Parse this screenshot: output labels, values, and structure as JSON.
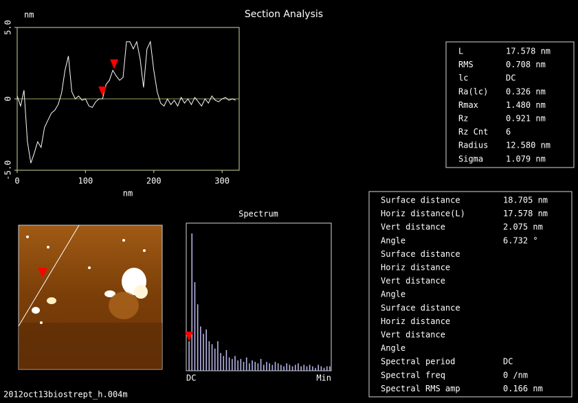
{
  "title": "Section Analysis",
  "filename": "2012oct13biostrept_h.004m",
  "chart_data": [
    {
      "type": "line",
      "ylabel": "nm",
      "xlabel": "nm",
      "x": [
        0,
        5,
        10,
        15,
        20,
        25,
        30,
        35,
        40,
        45,
        50,
        55,
        60,
        65,
        70,
        75,
        80,
        85,
        90,
        95,
        100,
        105,
        110,
        115,
        120,
        125,
        130,
        135,
        140,
        145,
        150,
        155,
        160,
        165,
        170,
        175,
        180,
        185,
        190,
        195,
        200,
        205,
        210,
        215,
        220,
        225,
        230,
        235,
        240,
        245,
        250,
        255,
        260,
        265,
        270,
        275,
        280,
        285,
        290,
        295,
        300,
        305,
        310,
        315,
        320
      ],
      "series": [
        {
          "color": "#ffffff",
          "values": [
            0.2,
            -0.5,
            0.6,
            -3.0,
            -4.5,
            -3.8,
            -3.0,
            -3.4,
            -2.0,
            -1.5,
            -1.0,
            -0.8,
            -0.4,
            0.4,
            2.0,
            3.0,
            0.5,
            0.0,
            0.2,
            -0.1,
            0.0,
            -0.5,
            -0.6,
            -0.2,
            0.0,
            0.0,
            1.0,
            1.3,
            2.0,
            1.6,
            1.3,
            1.5,
            4.0,
            4.0,
            3.5,
            4.0,
            2.8,
            0.8,
            3.5,
            4.0,
            2.0,
            0.5,
            -0.3,
            -0.5,
            0.0,
            -0.4,
            -0.1,
            -0.5,
            0.1,
            -0.3,
            0.0,
            -0.4,
            0.1,
            -0.2,
            -0.5,
            0.0,
            -0.3,
            0.2,
            -0.1,
            -0.2,
            0.0,
            0.1,
            -0.1,
            0.0,
            -0.1
          ]
        }
      ],
      "cursors": {
        "color": "#ff0000",
        "x": [
          125,
          142
        ],
        "values": [
          0.0,
          1.9
        ]
      },
      "xlim": [
        0,
        325
      ],
      "xticks": [
        0,
        100,
        200,
        300
      ],
      "ylim": [
        -5,
        5
      ],
      "yticks": [
        {
          "value": -5,
          "label": "-5.0"
        },
        0,
        {
          "value": 5,
          "label": "5.0"
        }
      ],
      "zero_line": true
    },
    {
      "type": "bar",
      "title": "Spectrum",
      "color": "#b4b4e8",
      "categories": [
        "DC",
        null,
        null,
        null,
        null,
        null,
        null,
        null,
        null,
        null,
        null,
        null,
        null,
        null,
        null,
        null,
        null,
        null,
        null,
        null,
        null,
        null,
        null,
        null,
        null,
        null,
        null,
        null,
        null,
        null,
        null,
        null,
        null,
        null,
        null,
        null,
        null,
        null,
        null,
        null,
        null,
        null,
        null,
        null,
        null,
        null,
        null,
        null,
        null,
        "Min"
      ],
      "values": [
        20,
        93,
        60,
        45,
        30,
        25,
        28,
        20,
        18,
        15,
        20,
        12,
        10,
        14,
        9,
        8,
        10,
        7,
        8,
        6,
        9,
        5,
        7,
        6,
        5,
        8,
        4,
        6,
        5,
        4,
        6,
        5,
        4,
        3,
        5,
        4,
        3,
        4,
        5,
        3,
        4,
        3,
        4,
        3,
        2,
        4,
        3,
        2,
        3,
        3
      ],
      "ylim": [
        0,
        100
      ]
    }
  ],
  "statistics": {
    "color": "#e02020",
    "rows": [
      [
        "L",
        "17.578 nm"
      ],
      [
        "RMS",
        "0.708 nm"
      ],
      [
        "lc",
        "DC"
      ],
      [
        "Ra(lc)",
        "0.326 nm"
      ],
      [
        "Rmax",
        "1.480 nm"
      ],
      [
        "Rz",
        "0.921 nm"
      ],
      [
        "Rz Cnt",
        "6"
      ],
      [
        "Radius",
        "12.580 nm"
      ],
      [
        "Sigma",
        "1.079 nm"
      ]
    ]
  },
  "measurements": {
    "groups": [
      {
        "color": "#e02020",
        "rows": [
          [
            "Surface distance",
            "18.705 nm"
          ],
          [
            "Horiz distance(L)",
            "17.578 nm"
          ],
          [
            "Vert distance",
            "2.075 nm"
          ],
          [
            "Angle",
            "6.732 °"
          ]
        ]
      },
      {
        "color": "#20d020",
        "rows": [
          [
            "Surface distance"
          ],
          [
            "Horiz distance"
          ],
          [
            "Vert distance"
          ],
          [
            "Angle"
          ]
        ]
      },
      {
        "color": "#ffffff",
        "rows": [
          [
            "Surface distance"
          ],
          [
            "Horiz distance"
          ],
          [
            "Vert distance"
          ],
          [
            "Angle"
          ]
        ]
      },
      {
        "color": "#e02020",
        "rows": [
          [
            "Spectral period",
            "DC"
          ],
          [
            "Spectral freq",
            "0 /nm"
          ],
          [
            "Spectral RMS amp",
            "0.166 nm"
          ]
        ]
      }
    ]
  }
}
